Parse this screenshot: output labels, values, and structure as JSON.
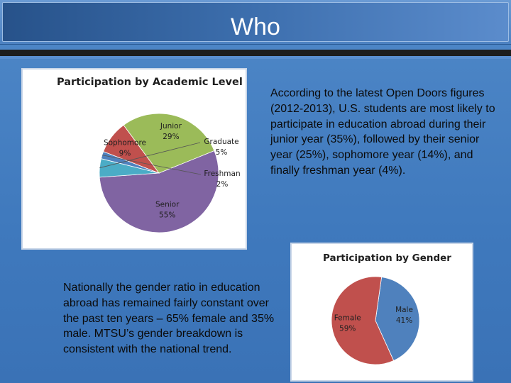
{
  "slide": {
    "title": "Who",
    "text_right": "According to the latest Open Doors figures (2012-2013), U.S. students are most likely to participate in education abroad during their junior year (35%), followed by their senior year (25%), sophomore year (14%), and finally freshman year (4%).",
    "text_left": "Nationally the gender ratio in education abroad has remained fairly constant over the past ten years – 65% female and 35% male. MTSU’s gender breakdown is consistent with the national trend."
  },
  "chart_data": [
    {
      "type": "pie",
      "title": "Participation by Academic Level",
      "slices": [
        {
          "label": "Senior",
          "pct": "55%",
          "value": 55,
          "color": "#8064a2"
        },
        {
          "label": "Graduate",
          "pct": "5%",
          "value": 5,
          "color": "#4bacc6"
        },
        {
          "label": "Freshman",
          "pct": "2%",
          "value": 2,
          "color": "#4f81bd"
        },
        {
          "label": "Sophomore",
          "pct": "9%",
          "value": 9,
          "color": "#c0504d"
        },
        {
          "label": "Junior",
          "pct": "29%",
          "value": 29,
          "color": "#9bbb59"
        }
      ]
    },
    {
      "type": "pie",
      "title": "Participation by Gender",
      "slices": [
        {
          "label": "Male",
          "pct": "41%",
          "value": 41,
          "color": "#4f81bd"
        },
        {
          "label": "Female",
          "pct": "59%",
          "value": 59,
          "color": "#c0504d"
        }
      ]
    }
  ]
}
